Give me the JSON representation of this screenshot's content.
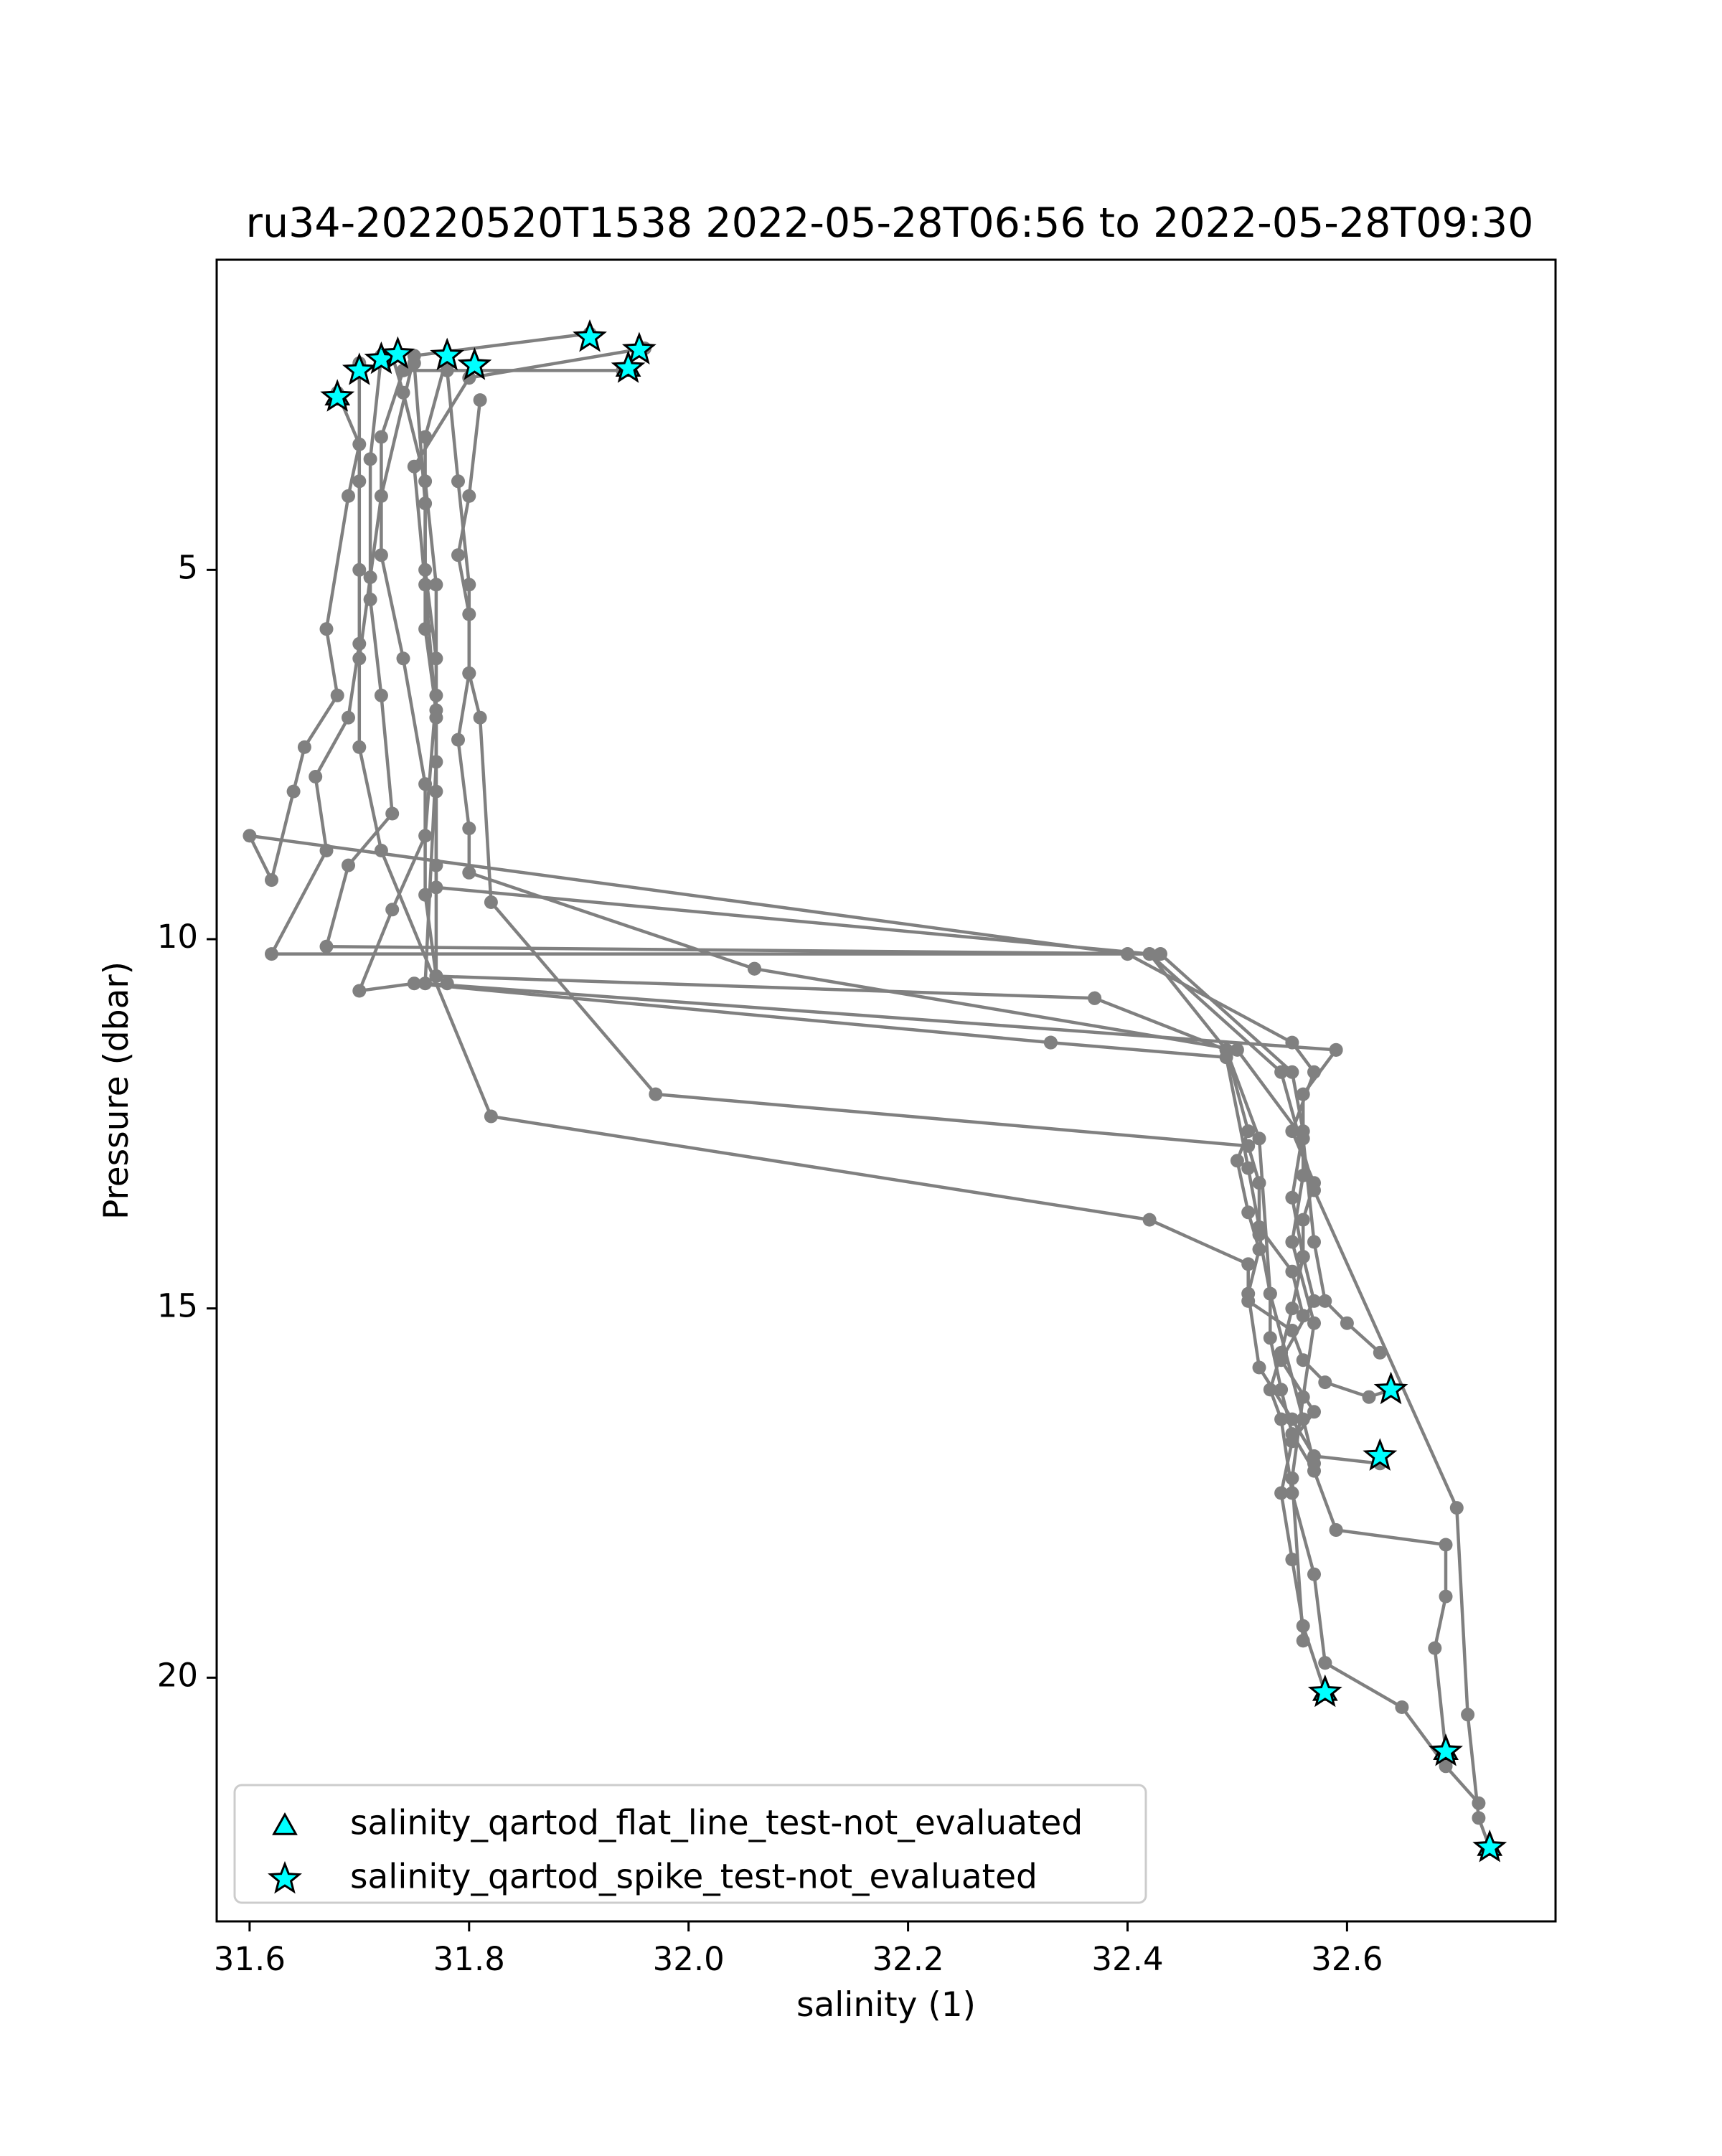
{
  "chart_data": {
    "type": "scatter",
    "title": "ru34-20220520T1538 2022-05-28T06:56 to 2022-05-28T09:30",
    "xlabel": "salinity (1)",
    "ylabel": "Pressure (dbar)",
    "xlim": [
      31.57,
      32.79
    ],
    "ylim": [
      23.3,
      0.8
    ],
    "y_inverted": true,
    "grid": false,
    "x_ticks": [
      {
        "value": 31.6,
        "label": "31.6"
      },
      {
        "value": 31.8,
        "label": "31.8"
      },
      {
        "value": 32.0,
        "label": "32.0"
      },
      {
        "value": 32.2,
        "label": "32.2"
      },
      {
        "value": 32.4,
        "label": "32.4"
      },
      {
        "value": 32.6,
        "label": "32.6"
      }
    ],
    "y_ticks": [
      {
        "value": 5,
        "label": "5"
      },
      {
        "value": 10,
        "label": "10"
      },
      {
        "value": 15,
        "label": "15"
      },
      {
        "value": 20,
        "label": "20"
      }
    ],
    "line_color": "#808080",
    "marker_color": "#00ffff",
    "series": [
      {
        "x": [
          31.68,
          31.7,
          31.69,
          31.67,
          31.68,
          31.65,
          31.64,
          31.62,
          31.6,
          32.4
        ],
        "y": [
          2.6,
          3.3,
          4.0,
          5.8,
          6.7,
          7.4,
          8.0,
          9.2,
          8.6,
          10.2
        ]
      },
      {
        "x": [
          32.4,
          32.55,
          32.57,
          32.55,
          32.57,
          32.56,
          32.56,
          32.57,
          32.54,
          32.57,
          32.55,
          32.54,
          32.55,
          32.56,
          32.58
        ],
        "y": [
          10.2,
          11.4,
          11.8,
          12.6,
          13.3,
          13.8,
          14.3,
          14.9,
          15.7,
          16.4,
          16.8,
          17.5,
          18.4,
          19.3,
          20.2
        ]
      },
      {
        "x": [
          31.7,
          31.7,
          31.7,
          31.7,
          31.69,
          31.66,
          31.67,
          31.62,
          32.42,
          32.49,
          32.51,
          32.5,
          32.51,
          32.52,
          32.51,
          32.52,
          32.55,
          32.57,
          32.63
        ],
        "y": [
          2.2,
          3.8,
          5.0,
          6.0,
          7.0,
          7.8,
          8.8,
          10.2,
          10.2,
          11.5,
          12.6,
          13.0,
          13.7,
          14.2,
          14.8,
          15.8,
          16.5,
          17.0,
          17.1
        ]
      },
      {
        "x": [
          31.72,
          31.71,
          31.71,
          31.72,
          31.73,
          31.69,
          31.67,
          32.43
        ],
        "y": [
          2.1,
          3.5,
          5.4,
          6.7,
          8.3,
          9.0,
          10.1,
          10.2
        ]
      },
      {
        "x": [
          32.43,
          32.55,
          32.56,
          32.55,
          32.56,
          32.55,
          32.54,
          32.53,
          32.54,
          32.55,
          32.57,
          32.58
        ],
        "y": [
          10.2,
          11.8,
          12.6,
          13.5,
          14.3,
          15.0,
          15.6,
          16.1,
          16.5,
          17.5,
          18.6,
          19.8
        ]
      },
      {
        "x": [
          32.58,
          32.65,
          32.69,
          32.72
        ],
        "y": [
          19.8,
          20.4,
          21.2,
          21.7
        ]
      },
      {
        "x": [
          31.73,
          31.74,
          31.76,
          31.77,
          31.77,
          31.76,
          31.73,
          31.7,
          31.75,
          32.33
        ],
        "y": [
          2.1,
          2.6,
          3.8,
          5.2,
          6.7,
          8.6,
          9.6,
          10.7,
          10.6,
          11.4
        ]
      },
      {
        "x": [
          32.33,
          32.49,
          32.51,
          32.52,
          32.55,
          32.56
        ],
        "y": [
          11.4,
          11.6,
          13.1,
          13.9,
          14.5,
          15.1
        ]
      },
      {
        "x": [
          31.75,
          31.76,
          31.76,
          31.77,
          31.77,
          31.77,
          31.77,
          32.37
        ],
        "y": [
          2.2,
          4.1,
          5.8,
          6.9,
          8.0,
          9.0,
          10.5,
          10.8
        ]
      },
      {
        "x": [
          32.37,
          32.49,
          32.52,
          32.53,
          32.56,
          32.57
        ],
        "y": [
          10.8,
          11.5,
          12.7,
          14.8,
          16.5,
          17.1
        ]
      },
      {
        "x": [
          31.78,
          31.76,
          31.76,
          31.77,
          31.77,
          31.76,
          32.59
        ],
        "y": [
          2.1,
          3.2,
          5.0,
          6.2,
          7.6,
          10.6,
          11.5
        ]
      },
      {
        "x": [
          32.59,
          32.56,
          32.56,
          32.55,
          32.57,
          32.56,
          32.55,
          32.56
        ],
        "y": [
          11.5,
          12.1,
          13.2,
          14.1,
          15.2,
          16.2,
          17.3,
          19.5
        ]
      },
      {
        "x": [
          31.78,
          31.79,
          31.8,
          31.8,
          31.79,
          31.8,
          31.8,
          32.06
        ],
        "y": [
          2.3,
          3.8,
          5.2,
          6.4,
          7.3,
          8.5,
          9.1,
          10.4
        ]
      },
      {
        "x": [
          32.06,
          32.5,
          32.56,
          32.57,
          32.58,
          32.6,
          32.63
        ],
        "y": [
          10.4,
          11.5,
          12.7,
          14.1,
          14.9,
          15.2,
          15.6
        ]
      },
      {
        "x": [
          31.81,
          31.8,
          31.79,
          31.8,
          31.8,
          31.81,
          31.82,
          31.97,
          32.51,
          32.52,
          32.52,
          32.53,
          32.53,
          32.54,
          32.55,
          32.57,
          32.59
        ],
        "y": [
          2.7,
          4.0,
          4.8,
          5.6,
          6.4,
          7.0,
          9.5,
          12.1,
          12.8,
          13.3,
          14.0,
          14.8,
          15.4,
          16.1,
          16.7,
          17.2,
          18.0
        ]
      },
      {
        "x": [
          32.59,
          32.69,
          32.69,
          32.68,
          32.69
        ],
        "y": [
          18.0,
          18.2,
          18.9,
          19.6,
          21.0
        ]
      },
      {
        "x": [
          31.91,
          31.75,
          31.72,
          31.71,
          31.7,
          31.7,
          31.72,
          31.82,
          32.42,
          32.51,
          32.51,
          32.55,
          32.56,
          32.58,
          32.62,
          32.64
        ],
        "y": [
          1.8,
          2.1,
          4.0,
          5.1,
          6.2,
          7.4,
          8.8,
          12.4,
          13.8,
          14.4,
          14.9,
          15.3,
          15.7,
          16.0,
          16.2,
          16.1
        ]
      },
      {
        "x": [
          31.96,
          31.8,
          31.75,
          31.76,
          31.77,
          31.77,
          32.42,
          32.54,
          32.57,
          32.7,
          32.71,
          32.72,
          32.73
        ],
        "y": [
          2.0,
          2.4,
          3.6,
          5.2,
          7.0,
          9.3,
          10.2,
          11.8,
          13.4,
          17.7,
          20.5,
          21.9,
          22.3
        ]
      },
      {
        "x": [
          31.94,
          31.74,
          31.72,
          31.72,
          31.74,
          31.76,
          31.76,
          31.77,
          31.78
        ],
        "y": [
          2.3,
          2.3,
          3.2,
          4.8,
          6.2,
          7.9,
          9.4,
          10.5,
          10.6
        ]
      }
    ],
    "star_markers": [
      {
        "x": 31.91,
        "y": 1.85
      },
      {
        "x": 31.955,
        "y": 2.02
      },
      {
        "x": 31.945,
        "y": 2.27
      },
      {
        "x": 31.68,
        "y": 2.66
      },
      {
        "x": 31.7,
        "y": 2.3
      },
      {
        "x": 31.72,
        "y": 2.15
      },
      {
        "x": 31.735,
        "y": 2.08
      },
      {
        "x": 31.78,
        "y": 2.1
      },
      {
        "x": 31.805,
        "y": 2.23
      },
      {
        "x": 32.64,
        "y": 16.1
      },
      {
        "x": 32.63,
        "y": 17.0
      },
      {
        "x": 32.58,
        "y": 20.2
      },
      {
        "x": 32.69,
        "y": 21.0
      },
      {
        "x": 32.73,
        "y": 22.3
      }
    ],
    "triangle_markers": [
      {
        "x": 31.68,
        "y": 2.66
      },
      {
        "x": 31.945,
        "y": 2.27
      },
      {
        "x": 32.58,
        "y": 20.2
      },
      {
        "x": 32.69,
        "y": 21.0
      },
      {
        "x": 32.73,
        "y": 22.3
      }
    ],
    "legend": {
      "placement": "lower-left",
      "entries": [
        {
          "marker": "triangle",
          "label": "salinity_qartod_flat_line_test-not_evaluated"
        },
        {
          "marker": "star",
          "label": "salinity_qartod_spike_test-not_evaluated"
        }
      ]
    }
  }
}
